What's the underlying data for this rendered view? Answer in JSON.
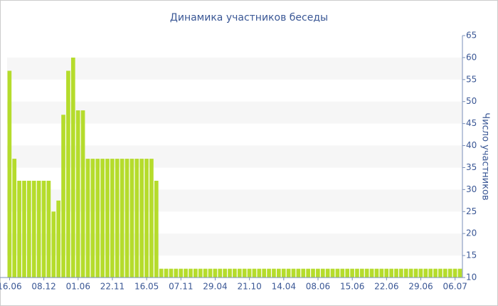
{
  "chart_data": {
    "type": "bar",
    "title": "Динамика участников беседы",
    "y_label": "Число участников",
    "categories": [
      "16.06",
      null,
      null,
      null,
      null,
      null,
      null,
      "08.12",
      null,
      null,
      null,
      null,
      null,
      null,
      "01.06",
      null,
      null,
      null,
      null,
      null,
      null,
      "22.11",
      null,
      null,
      null,
      null,
      null,
      null,
      "16.05",
      null,
      null,
      null,
      null,
      null,
      null,
      "07.11",
      null,
      null,
      null,
      null,
      null,
      null,
      "29.04",
      null,
      null,
      null,
      null,
      null,
      null,
      "21.10",
      null,
      null,
      null,
      null,
      null,
      null,
      "14.04",
      null,
      null,
      null,
      null,
      null,
      null,
      "08.06",
      null,
      null,
      null,
      null,
      null,
      null,
      "15.06",
      null,
      null,
      null,
      null,
      null,
      null,
      "22.06",
      null,
      null,
      null,
      null,
      null,
      null,
      "29.06",
      null,
      null,
      null,
      null,
      null,
      null,
      "06.07",
      null
    ],
    "values": [
      57,
      37,
      32,
      32,
      32,
      32,
      32,
      32,
      32,
      25,
      27.5,
      47,
      57,
      60,
      48,
      48,
      37,
      37,
      37,
      37,
      37,
      37,
      37,
      37,
      37,
      37,
      37,
      37,
      37,
      37,
      32,
      12,
      12,
      12,
      12,
      12,
      12,
      12,
      12,
      12,
      12,
      12,
      12,
      12,
      12,
      12,
      12,
      12,
      12,
      12,
      12,
      12,
      12,
      12,
      12,
      12,
      12,
      12,
      12,
      12,
      12,
      12,
      12,
      12,
      12,
      12,
      12,
      12,
      12,
      12,
      12,
      12,
      12,
      12,
      12,
      12,
      12,
      12,
      12,
      12,
      12,
      12,
      12,
      12,
      12,
      12,
      12,
      12,
      12,
      12,
      12,
      12,
      12
    ],
    "color": "#b5dc2c",
    "ylim": [
      10,
      65
    ],
    "yticks": [
      10,
      15,
      20,
      25,
      30,
      35,
      40,
      45,
      50,
      55,
      60,
      65
    ],
    "y_axis_side": "right",
    "grid": "bands"
  }
}
